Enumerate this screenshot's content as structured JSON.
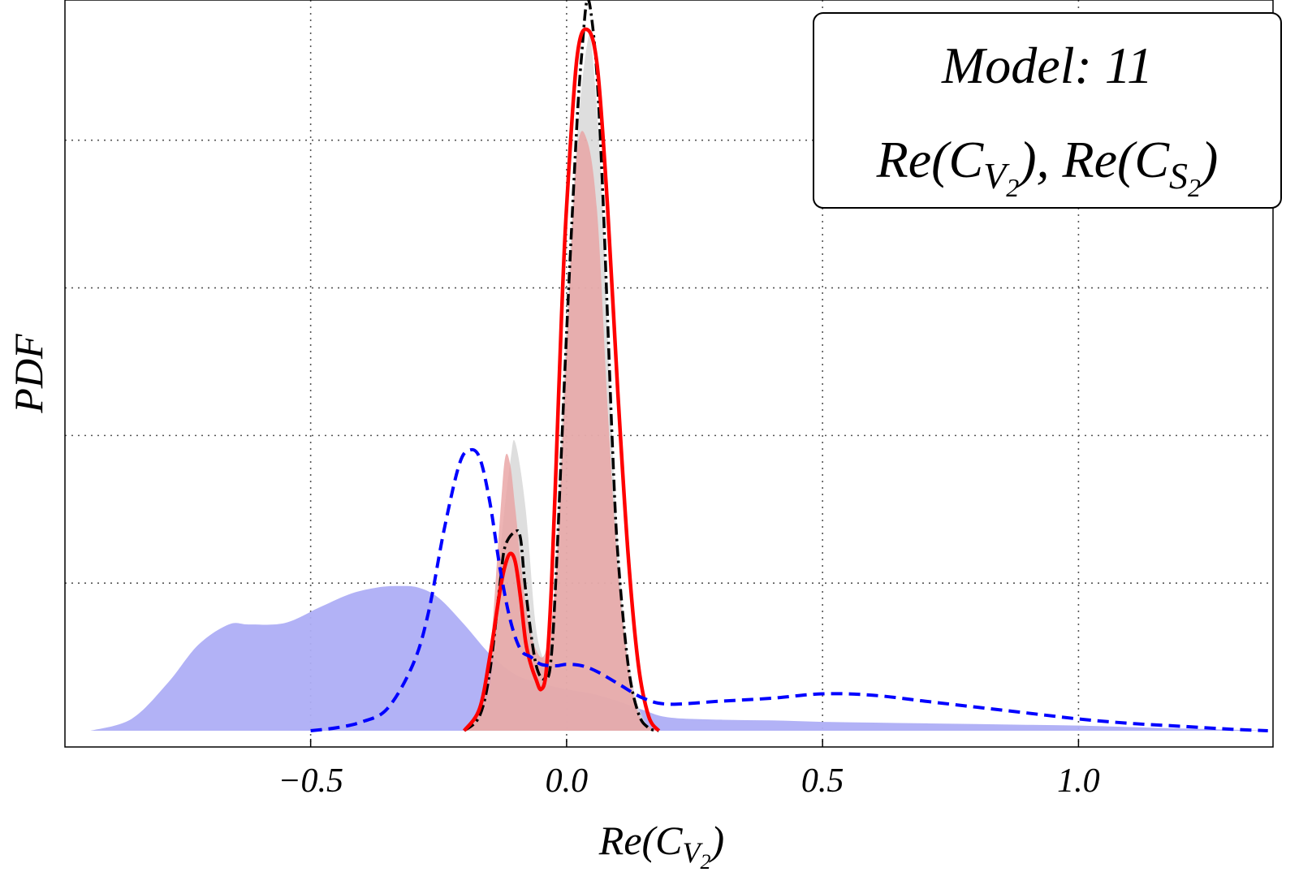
{
  "chart_data": {
    "type": "area",
    "title": "",
    "xlabel": {
      "base": "Re(C",
      "sub": "V",
      "subsub": "2",
      "close": ")"
    },
    "ylabel": "PDF",
    "xlim": [
      -0.98,
      1.38
    ],
    "ylim": [
      -0.11,
      4.95
    ],
    "x_ticks": [
      -0.5,
      0.0,
      0.5,
      1.0
    ],
    "x_tick_labels": [
      "−0.5",
      "0.0",
      "0.5",
      "1.0"
    ],
    "y_gridlines": [
      1,
      2,
      3,
      4
    ],
    "x_gridlines": [
      -0.5,
      0.0,
      0.5,
      1.0
    ],
    "legend": {
      "position": "top-right",
      "line1": "Model: 11",
      "line2_part1": "Re(C",
      "line2_sub1": "V",
      "line2_subsub1": "2",
      "line2_mid": "), Re(C",
      "line2_sub2": "S",
      "line2_subsub2": "2",
      "line2_end": ")"
    },
    "series": [
      {
        "name": "blue-filled-pdf",
        "style": "filled",
        "color": "#aeaef6",
        "x": [
          -0.93,
          -0.85,
          -0.78,
          -0.72,
          -0.66,
          -0.62,
          -0.55,
          -0.48,
          -0.42,
          -0.37,
          -0.33,
          -0.29,
          -0.25,
          -0.2,
          -0.15,
          -0.1,
          -0.05,
          0.0,
          0.05,
          0.1,
          0.15,
          0.2,
          0.3,
          0.4,
          0.5,
          0.6,
          0.7,
          0.8,
          0.9,
          1.0,
          1.1,
          1.2,
          1.3,
          1.37
        ],
        "values": [
          0.0,
          0.08,
          0.32,
          0.58,
          0.72,
          0.72,
          0.73,
          0.84,
          0.93,
          0.97,
          0.98,
          0.97,
          0.9,
          0.72,
          0.52,
          0.38,
          0.32,
          0.28,
          0.25,
          0.2,
          0.14,
          0.09,
          0.075,
          0.07,
          0.06,
          0.055,
          0.05,
          0.045,
          0.04,
          0.035,
          0.025,
          0.015,
          0.007,
          0.0
        ]
      },
      {
        "name": "gray-filled-pdf",
        "style": "filled",
        "color": "#d6d6d6",
        "x": [
          -0.2,
          -0.15,
          -0.13,
          -0.11,
          -0.1,
          -0.08,
          -0.06,
          -0.04,
          -0.03,
          -0.02,
          0.0,
          0.02,
          0.04,
          0.05,
          0.07,
          0.09,
          0.11,
          0.13,
          0.15,
          0.17
        ],
        "values": [
          0.0,
          0.3,
          1.2,
          1.82,
          1.95,
          1.5,
          0.7,
          0.45,
          0.5,
          1.2,
          2.8,
          4.0,
          4.65,
          4.6,
          3.6,
          1.9,
          0.8,
          0.3,
          0.08,
          0.0
        ]
      },
      {
        "name": "red-filled-pdf",
        "style": "filled",
        "color": "#e8a1a1",
        "x": [
          -0.2,
          -0.17,
          -0.15,
          -0.13,
          -0.12,
          -0.11,
          -0.1,
          -0.08,
          -0.06,
          -0.04,
          -0.02,
          0.0,
          0.02,
          0.04,
          0.06,
          0.08,
          0.1,
          0.12,
          0.14,
          0.16,
          0.18
        ],
        "values": [
          0.0,
          0.15,
          0.5,
          1.45,
          1.85,
          1.8,
          1.5,
          0.85,
          0.55,
          0.55,
          1.1,
          2.6,
          3.9,
          4.0,
          3.5,
          2.2,
          1.1,
          0.45,
          0.12,
          0.03,
          0.0
        ]
      },
      {
        "name": "black-dot-dashed-pdf",
        "style": "dot-dash",
        "color": "#000000",
        "x": [
          -0.2,
          -0.17,
          -0.15,
          -0.13,
          -0.12,
          -0.1,
          -0.09,
          -0.08,
          -0.06,
          -0.04,
          -0.03,
          -0.02,
          0.0,
          0.02,
          0.03,
          0.04,
          0.05,
          0.06,
          0.07,
          0.08,
          0.09,
          0.1,
          0.12,
          0.14,
          0.16,
          0.18
        ],
        "values": [
          0.0,
          0.1,
          0.4,
          1.0,
          1.25,
          1.35,
          1.3,
          0.95,
          0.45,
          0.35,
          0.5,
          1.1,
          2.7,
          4.1,
          4.6,
          4.95,
          4.8,
          4.4,
          3.7,
          2.8,
          1.9,
          1.2,
          0.45,
          0.12,
          0.02,
          0.0
        ]
      },
      {
        "name": "red-solid-pdf",
        "style": "solid",
        "color": "#ff0000",
        "x": [
          -0.2,
          -0.17,
          -0.15,
          -0.13,
          -0.12,
          -0.11,
          -0.1,
          -0.09,
          -0.08,
          -0.07,
          -0.06,
          -0.05,
          -0.04,
          -0.03,
          -0.02,
          -0.01,
          0.0,
          0.02,
          0.04,
          0.06,
          0.08,
          0.1,
          0.12,
          0.14,
          0.16,
          0.18
        ],
        "values": [
          0.0,
          0.15,
          0.5,
          0.95,
          1.12,
          1.2,
          1.14,
          0.9,
          0.6,
          0.45,
          0.35,
          0.28,
          0.4,
          0.95,
          1.85,
          2.8,
          3.55,
          4.55,
          4.75,
          4.5,
          3.55,
          2.3,
          1.2,
          0.45,
          0.1,
          0.0
        ]
      },
      {
        "name": "blue-dashed-pdf",
        "style": "dashed",
        "color": "#0000ff",
        "x": [
          -0.5,
          -0.45,
          -0.4,
          -0.35,
          -0.3,
          -0.27,
          -0.24,
          -0.21,
          -0.19,
          -0.17,
          -0.15,
          -0.13,
          -0.11,
          -0.09,
          -0.07,
          -0.05,
          -0.02,
          0.0,
          0.03,
          0.06,
          0.1,
          0.15,
          0.2,
          0.3,
          0.4,
          0.5,
          0.6,
          0.7,
          0.8,
          0.9,
          1.0,
          1.1,
          1.2,
          1.3,
          1.37
        ],
        "values": [
          0.0,
          0.02,
          0.06,
          0.15,
          0.45,
          0.8,
          1.35,
          1.8,
          1.9,
          1.85,
          1.55,
          1.1,
          0.75,
          0.55,
          0.5,
          0.45,
          0.44,
          0.45,
          0.44,
          0.4,
          0.32,
          0.22,
          0.18,
          0.2,
          0.22,
          0.25,
          0.24,
          0.2,
          0.16,
          0.12,
          0.08,
          0.05,
          0.03,
          0.01,
          0.0
        ]
      }
    ]
  }
}
